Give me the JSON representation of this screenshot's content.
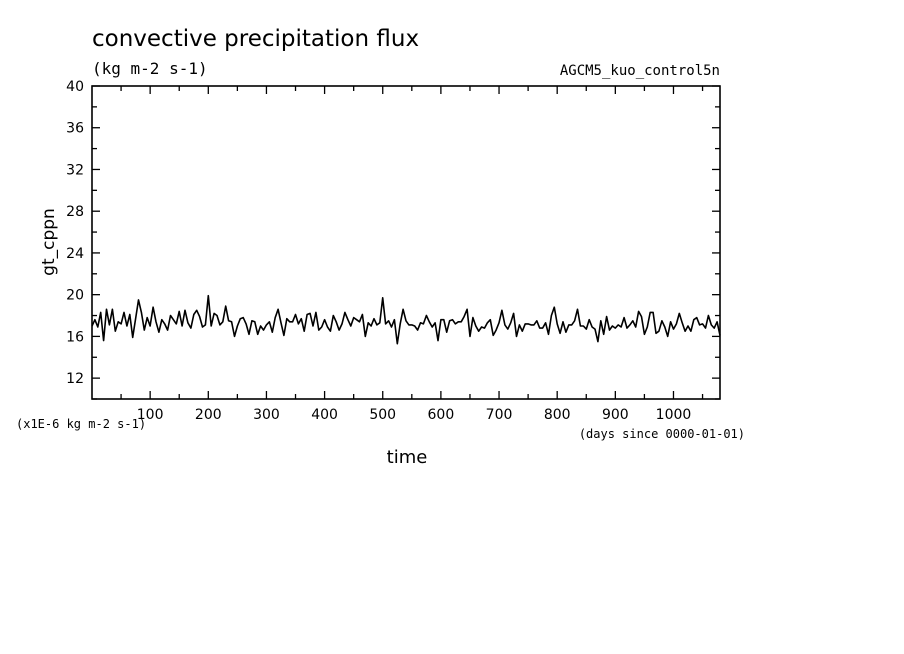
{
  "chart_data": {
    "type": "line",
    "title": "convective precipitation flux",
    "units_label": "(kg m-2 s-1)",
    "dataset_label": "AGCM5_kuo_control5n",
    "ylabel": "gt_cppn",
    "xlabel": "time",
    "x_units_label": "(days since 0000-01-01)",
    "y_scale_label": "(x1E-6 kg m-2 s-1)",
    "xlim": [
      0,
      1080
    ],
    "ylim": [
      10,
      40
    ],
    "x_ticks_labeled": [
      100,
      200,
      300,
      400,
      500,
      600,
      700,
      800,
      900,
      1000
    ],
    "x_ticks_minor_step": 50,
    "y_ticks_labeled": [
      12,
      16,
      20,
      24,
      28,
      32,
      36,
      40
    ],
    "y_ticks_minor_step": 2,
    "grid": false,
    "legend": "none",
    "color": "#000000",
    "series": [
      {
        "x": [
          0,
          5,
          10,
          15,
          20,
          25,
          30,
          35,
          40,
          45,
          50,
          55,
          60,
          65,
          70,
          75,
          80,
          85,
          90,
          95,
          100,
          105,
          110,
          115,
          120,
          125,
          130,
          135,
          140,
          145,
          150,
          155,
          160,
          165,
          170,
          175,
          180,
          185,
          190,
          195,
          200,
          205,
          210,
          215,
          220,
          225,
          230,
          235,
          240,
          245,
          250,
          255,
          260,
          265,
          270,
          275,
          280,
          285,
          290,
          295,
          300,
          305,
          310,
          315,
          320,
          325,
          330,
          335,
          340,
          345,
          350,
          355,
          360,
          365,
          370,
          375,
          380,
          385,
          390,
          395,
          400,
          405,
          410,
          415,
          420,
          425,
          430,
          435,
          440,
          445,
          450,
          455,
          460,
          465,
          470,
          475,
          480,
          485,
          490,
          495,
          500,
          505,
          510,
          515,
          520,
          525,
          530,
          535,
          540,
          545,
          550,
          555,
          560,
          565,
          570,
          575,
          580,
          585,
          590,
          595,
          600,
          605,
          610,
          615,
          620,
          625,
          630,
          635,
          640,
          645,
          650,
          655,
          660,
          665,
          670,
          675,
          680,
          685,
          690,
          695,
          700,
          705,
          710,
          715,
          720,
          725,
          730,
          735,
          740,
          745,
          750,
          755,
          760,
          765,
          770,
          775,
          780,
          785,
          790,
          795,
          800,
          805,
          810,
          815,
          820,
          825,
          830,
          835,
          840,
          845,
          850,
          855,
          860,
          865,
          870,
          875,
          880,
          885,
          890,
          895,
          900,
          905,
          910,
          915,
          920,
          925,
          930,
          935,
          940,
          945,
          950,
          955,
          960,
          965,
          970,
          975,
          980,
          985,
          990,
          995,
          1000,
          1005,
          1010,
          1015,
          1020,
          1025,
          1030,
          1035,
          1040,
          1045,
          1050,
          1055,
          1060,
          1065,
          1070,
          1075,
          1080
        ],
        "y": [
          17.0,
          17.6,
          16.9,
          18.3,
          15.6,
          18.6,
          17.1,
          18.6,
          16.5,
          17.4,
          17.2,
          18.3,
          17.0,
          18.1,
          15.9,
          17.7,
          19.5,
          18.3,
          16.6,
          17.8,
          17.0,
          18.8,
          17.4,
          16.4,
          17.6,
          17.2,
          16.6,
          18.0,
          17.6,
          17.2,
          18.4,
          17.0,
          18.5,
          17.3,
          16.8,
          18.1,
          18.5,
          17.9,
          16.9,
          17.1,
          19.9,
          17.0,
          18.2,
          18.0,
          17.1,
          17.4,
          18.9,
          17.5,
          17.4,
          16.0,
          17.0,
          17.7,
          17.8,
          17.2,
          16.2,
          17.5,
          17.4,
          16.2,
          17.0,
          16.6,
          17.1,
          17.4,
          16.4,
          17.8,
          18.6,
          17.3,
          16.1,
          17.7,
          17.4,
          17.4,
          18.1,
          17.2,
          17.7,
          16.5,
          18.1,
          18.2,
          17.0,
          18.3,
          16.6,
          16.9,
          17.6,
          16.9,
          16.5,
          18.0,
          17.4,
          16.6,
          17.2,
          18.3,
          17.6,
          17.0,
          17.8,
          17.6,
          17.4,
          18.1,
          16.0,
          17.3,
          17.0,
          17.7,
          17.1,
          17.3,
          19.7,
          17.2,
          17.5,
          16.9,
          17.6,
          15.3,
          17.2,
          18.6,
          17.5,
          17.1,
          17.1,
          17.0,
          16.6,
          17.3,
          17.2,
          18.0,
          17.4,
          16.9,
          17.3,
          15.6,
          17.6,
          17.6,
          16.4,
          17.5,
          17.6,
          17.2,
          17.4,
          17.4,
          17.9,
          18.6,
          16.0,
          17.8,
          17.0,
          16.5,
          16.9,
          16.8,
          17.3,
          17.6,
          16.1,
          16.6,
          17.3,
          18.5,
          17.1,
          16.7,
          17.3,
          18.2,
          16.0,
          17.1,
          16.5,
          17.2,
          17.2,
          17.1,
          17.1,
          17.5,
          16.8,
          16.8,
          17.3,
          16.2,
          18.0,
          18.8,
          17.2,
          16.3,
          17.4,
          16.4,
          17.1,
          17.1,
          17.5,
          18.6,
          17.0,
          17.0,
          16.7,
          17.6,
          16.9,
          16.7,
          15.5,
          17.5,
          16.2,
          17.9,
          16.6,
          17.0,
          16.8,
          17.1,
          16.9,
          17.8,
          16.8,
          17.1,
          17.5,
          16.9,
          18.4,
          17.9,
          16.2,
          16.9,
          18.3,
          18.3,
          16.3,
          16.5,
          17.5,
          16.9,
          16.0,
          17.4,
          16.7,
          17.2,
          18.2,
          17.3,
          16.5,
          17.0,
          16.5,
          17.6,
          17.8,
          17.1,
          17.2,
          16.8,
          18.0,
          17.1,
          16.8,
          17.4,
          16.1
        ]
      }
    ]
  }
}
